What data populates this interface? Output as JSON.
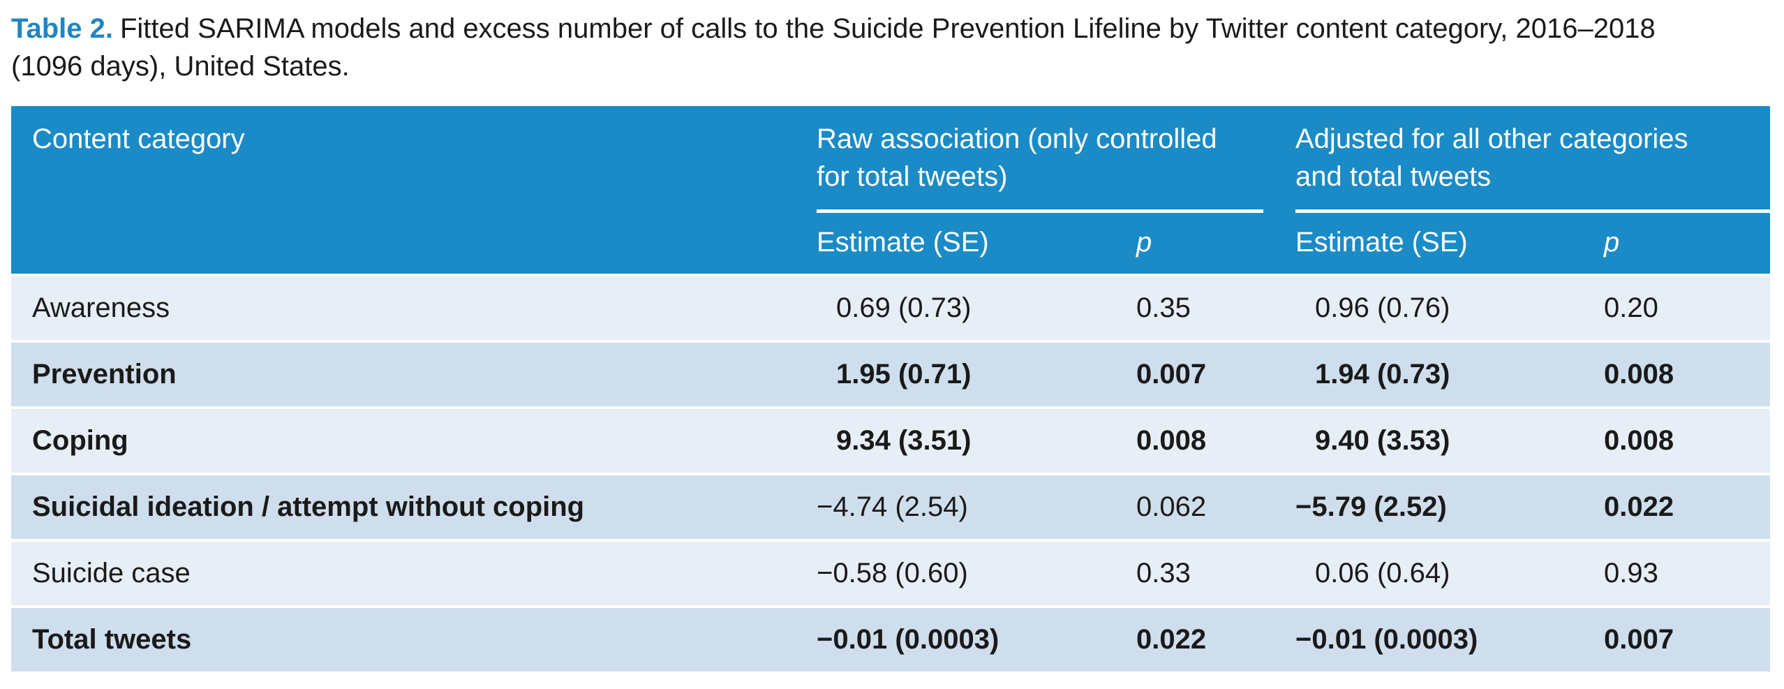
{
  "caption": {
    "label": "Table 2.",
    "text": "Fitted SARIMA models and excess number of calls to the Suicide Prevention Lifeline by Twitter content category, 2016–2018 (1096 days), United States."
  },
  "header": {
    "content_category": "Content category",
    "raw_group_line1": "Raw association (only controlled",
    "raw_group_line2": "for total tweets)",
    "adj_group_line1": "Adjusted for all other categories",
    "adj_group_line2": "and total tweets",
    "raw_estimate": "Estimate (SE)",
    "raw_p": "p",
    "adj_estimate": "Estimate (SE)",
    "adj_p": "p"
  },
  "rows": [
    {
      "category": "Awareness",
      "raw_est": "0.69 (0.73)",
      "raw_p": "0.35",
      "adj_est": "0.96 (0.76)",
      "adj_p": "0.20",
      "bold": {
        "category": false,
        "raw": false,
        "adj": false
      }
    },
    {
      "category": "Prevention",
      "raw_est": "1.95 (0.71)",
      "raw_p": "0.007",
      "adj_est": "1.94 (0.73)",
      "adj_p": "0.008",
      "bold": {
        "category": true,
        "raw": true,
        "adj": true
      }
    },
    {
      "category": "Coping",
      "raw_est": "9.34 (3.51)",
      "raw_p": "0.008",
      "adj_est": "9.40 (3.53)",
      "adj_p": "0.008",
      "bold": {
        "category": true,
        "raw": true,
        "adj": true
      }
    },
    {
      "category": "Suicidal ideation / attempt without coping",
      "raw_est": "−4.74 (2.54)",
      "raw_p": "0.062",
      "adj_est": "−5.79 (2.52)",
      "adj_p": "0.022",
      "bold": {
        "category": true,
        "raw": false,
        "adj": true
      }
    },
    {
      "category": "Suicide case",
      "raw_est": "−0.58 (0.60)",
      "raw_p": "0.33",
      "adj_est": "0.06 (0.64)",
      "adj_p": "0.93",
      "bold": {
        "category": false,
        "raw": false,
        "adj": false
      }
    },
    {
      "category": "Total tweets",
      "raw_est": "−0.01 (0.0003)",
      "raw_p": "0.022",
      "adj_est": "−0.01 (0.0003)",
      "adj_p": "0.007",
      "bold": {
        "category": true,
        "raw": true,
        "adj": true
      }
    }
  ],
  "colors": {
    "caption_label": "#1f86c3",
    "header_bg": "#1a8bc6",
    "row_light": "#e7eef6",
    "row_dark": "#cfdeec"
  }
}
